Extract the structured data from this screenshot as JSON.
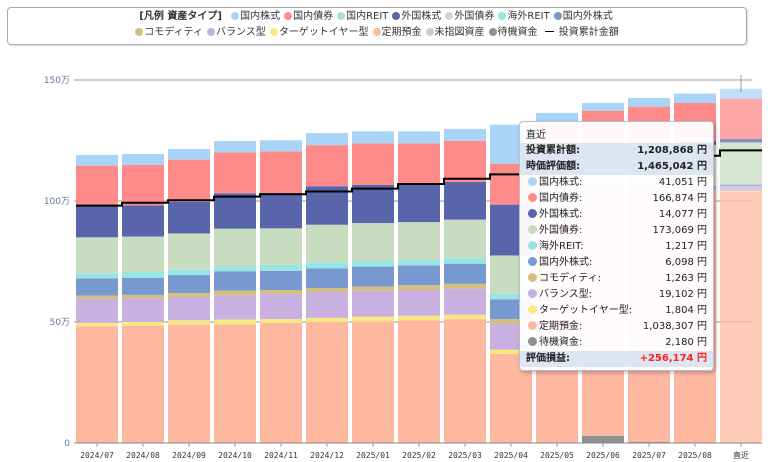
{
  "legend": {
    "title": "[凡例 資産タイプ]",
    "items": [
      {
        "label": "国内株式",
        "color": "#a8d4f8"
      },
      {
        "label": "国内債券",
        "color": "#ff8a8a"
      },
      {
        "label": "国内REIT",
        "color": "#a8e0c8"
      },
      {
        "label": "外国株式",
        "color": "#5865ab"
      },
      {
        "label": "外国債券",
        "color": "#c8dcc0"
      },
      {
        "label": "海外REIT",
        "color": "#98e6e4"
      },
      {
        "label": "国内外株式",
        "color": "#7898d0"
      },
      {
        "label": "コモディティ",
        "color": "#d4be80"
      },
      {
        "label": "バランス型",
        "color": "#c8b0e0"
      },
      {
        "label": "ターゲットイヤー型",
        "color": "#f8e880"
      },
      {
        "label": "定期預金",
        "color": "#ffb8a0"
      },
      {
        "label": "未指図資産",
        "color": "#cccccc"
      },
      {
        "label": "待機資金",
        "color": "#909090"
      }
    ],
    "line_label": "投資累計金額"
  },
  "chart_data": {
    "type": "bar",
    "stacked": true,
    "unit": "万円",
    "ylim": [
      0,
      150
    ],
    "yticks": [
      {
        "value": 0,
        "label": "0"
      },
      {
        "value": 50,
        "label": "50万"
      },
      {
        "value": 100,
        "label": "100万"
      },
      {
        "value": 150,
        "label": "150万"
      }
    ],
    "grid": true,
    "legend_position": "top",
    "categories": [
      "2024/07",
      "2024/08",
      "2024/09",
      "2024/10",
      "2024/11",
      "2024/12",
      "2025/01",
      "2025/02",
      "2025/03",
      "2025/04",
      "2025/05",
      "2025/06",
      "2025/07",
      "2025/08",
      "直近"
    ],
    "highlighted_category": "直近",
    "series": [
      {
        "name": "待機資金",
        "color": "#909090",
        "values": [
          0,
          0,
          0,
          0,
          0,
          0,
          0,
          0,
          0,
          0,
          0,
          3.0,
          0.5,
          0.2,
          0.2
        ]
      },
      {
        "name": "定期預金",
        "color": "#ffb8a0",
        "values": [
          48.2,
          48.5,
          48.9,
          49.0,
          49.6,
          50.0,
          50.3,
          50.7,
          51.2,
          36.8,
          95.0,
          99.0,
          102.5,
          103.1,
          103.8
        ]
      },
      {
        "name": "ターゲットイヤー型",
        "color": "#f8e880",
        "values": [
          1.4,
          1.5,
          1.8,
          2.0,
          1.6,
          1.7,
          1.9,
          1.9,
          1.8,
          1.8,
          0.2,
          0.2,
          0.2,
          0.2,
          0.2
        ]
      },
      {
        "name": "バランス型",
        "color": "#c8b0e0",
        "values": [
          10.0,
          9.8,
          9.6,
          10.0,
          10.4,
          10.7,
          10.7,
          10.6,
          10.9,
          10.6,
          2.0,
          1.9,
          1.9,
          1.9,
          1.9
        ]
      },
      {
        "name": "コモディティ",
        "color": "#d4be80",
        "values": [
          1.3,
          1.4,
          1.7,
          2.0,
          1.6,
          1.6,
          1.7,
          2.0,
          1.9,
          2.0,
          0.2,
          0.1,
          0.1,
          0.1,
          0.1
        ]
      },
      {
        "name": "国内外株式",
        "color": "#7898d0",
        "values": [
          7.1,
          7.1,
          7.4,
          7.9,
          7.9,
          8.2,
          8.3,
          8.2,
          8.3,
          8.2,
          0.7,
          0.6,
          0.6,
          0.6,
          0.6
        ]
      },
      {
        "name": "海外REIT",
        "color": "#98e6e4",
        "values": [
          2.1,
          2.4,
          2.2,
          2.2,
          2.5,
          2.5,
          2.3,
          2.2,
          2.3,
          2.3,
          0.1,
          0.1,
          0.1,
          0.1,
          0.1
        ]
      },
      {
        "name": "外国債券",
        "color": "#c8dcc0",
        "values": [
          14.9,
          14.6,
          15.0,
          15.5,
          15.1,
          15.5,
          15.7,
          15.7,
          15.9,
          15.8,
          16.5,
          16.5,
          16.8,
          17.0,
          17.3
        ]
      },
      {
        "name": "外国株式",
        "color": "#5865ab",
        "values": [
          13.1,
          12.9,
          13.1,
          14.6,
          14.6,
          15.9,
          15.8,
          15.4,
          15.6,
          21.0,
          2.0,
          1.5,
          1.5,
          1.5,
          1.4
        ]
      },
      {
        "name": "国内債券",
        "color": "#ff8a8a",
        "values": [
          16.5,
          16.7,
          17.4,
          16.9,
          17.2,
          17.0,
          17.1,
          17.1,
          17.0,
          16.9,
          16.2,
          14.4,
          14.8,
          15.8,
          16.7
        ]
      },
      {
        "name": "国内株式",
        "color": "#a8d4f8",
        "values": [
          4.4,
          4.5,
          4.4,
          4.7,
          4.6,
          5.0,
          5.0,
          5.0,
          4.9,
          16.1,
          3.5,
          3.2,
          3.6,
          3.9,
          4.1
        ]
      }
    ],
    "line": {
      "name": "投資累計金額",
      "color": "#000000",
      "values": [
        98.1,
        99.3,
        100.3,
        101.8,
        102.8,
        103.9,
        105.1,
        107.0,
        109.2,
        111.0,
        113.0,
        115.5,
        117.0,
        118.7,
        120.9
      ]
    }
  },
  "tooltip": {
    "title": "直近",
    "invested_label": "投資累計額:",
    "invested_value": "1,208,868 円",
    "market_label": "時価評価額:",
    "market_value": "1,465,042 円",
    "items": [
      {
        "label": "国内株式:",
        "value": "41,051 円",
        "color": "#a8d4f8"
      },
      {
        "label": "国内債券:",
        "value": "166,874 円",
        "color": "#ff8a8a"
      },
      {
        "label": "外国株式:",
        "value": "14,077 円",
        "color": "#5865ab"
      },
      {
        "label": "外国債券:",
        "value": "173,069 円",
        "color": "#c8dcc0"
      },
      {
        "label": "海外REIT:",
        "value": "1,217 円",
        "color": "#98e6e4"
      },
      {
        "label": "国内外株式:",
        "value": "6,098 円",
        "color": "#7898d0"
      },
      {
        "label": "コモディティ:",
        "value": "1,263 円",
        "color": "#d4be80"
      },
      {
        "label": "バランス型:",
        "value": "19,102 円",
        "color": "#c8b0e0"
      },
      {
        "label": "ターゲットイヤー型:",
        "value": "1,804 円",
        "color": "#f8e880"
      },
      {
        "label": "定期預金:",
        "value": "1,038,307 円",
        "color": "#ffb8a0"
      },
      {
        "label": "待機資金:",
        "value": "2,180 円",
        "color": "#909090"
      }
    ],
    "gain_label": "評価損益:",
    "gain_value": "+256,174 円",
    "gain_color": "#ff2020"
  }
}
